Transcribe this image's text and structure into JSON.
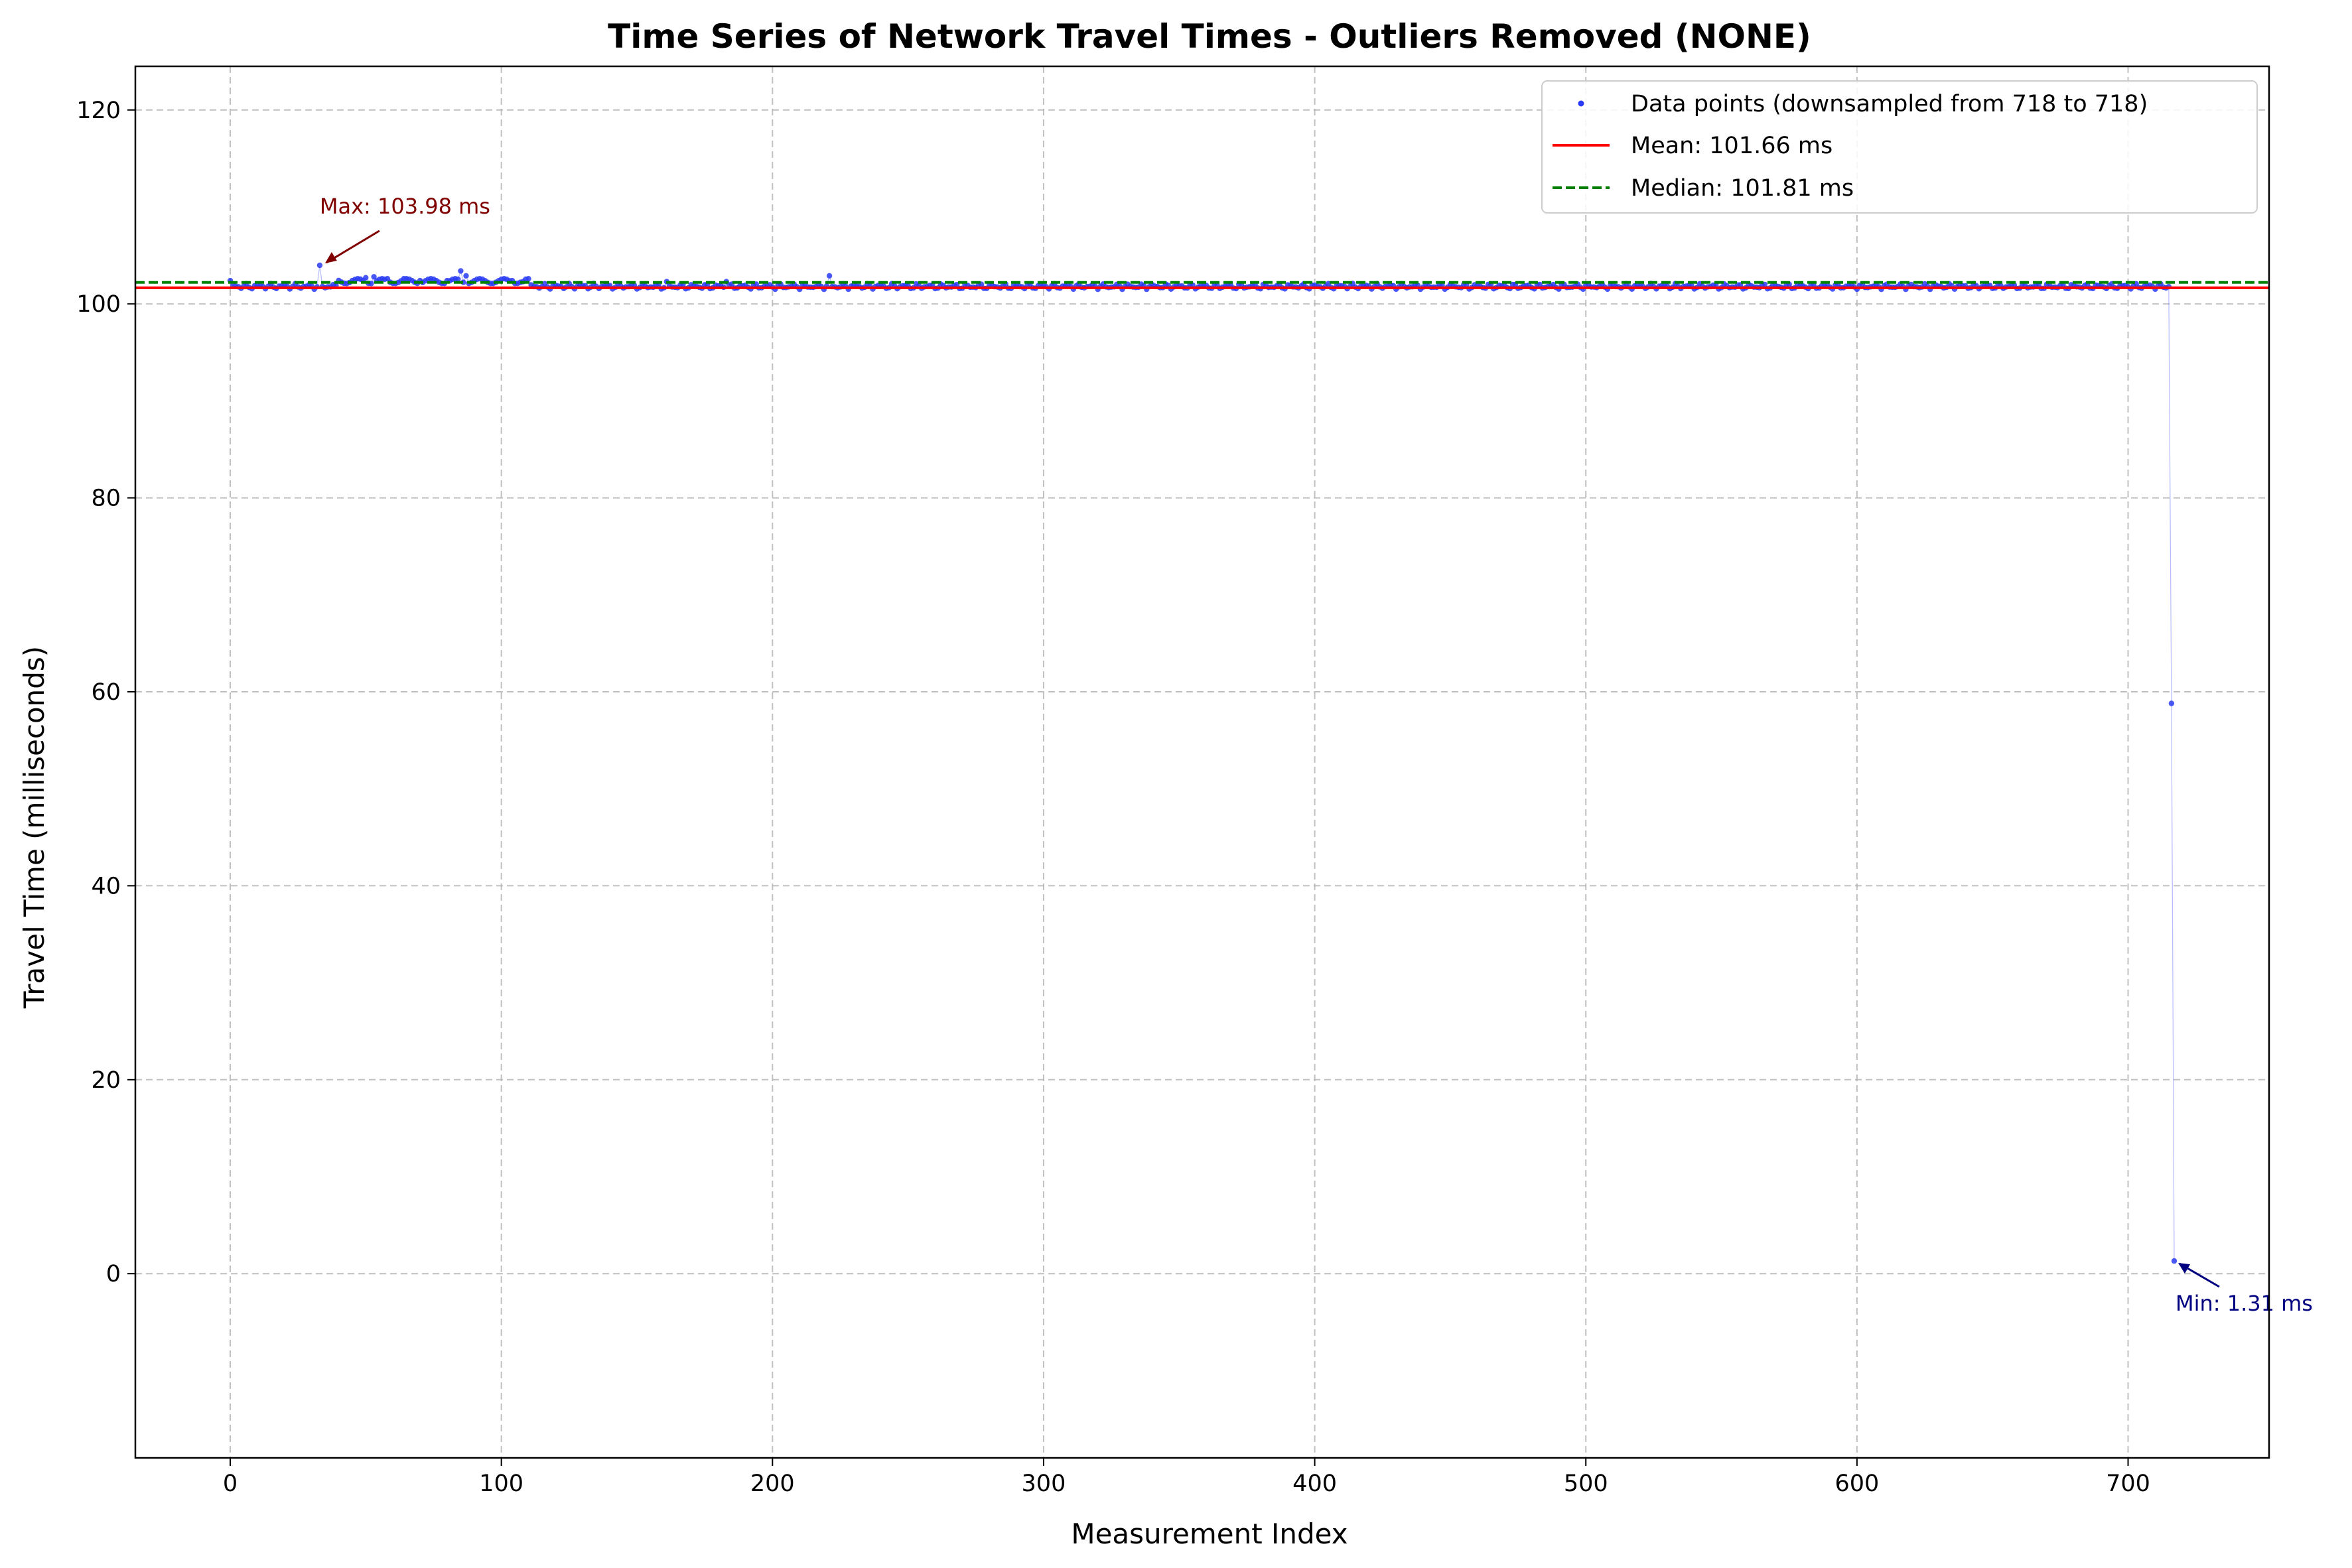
{
  "chart_data": {
    "type": "scatter",
    "title": "Time Series of Network Travel Times - Outliers Removed (NONE)",
    "xlabel": "Measurement Index",
    "ylabel": "Travel Time (milliseconds)",
    "xlim": [
      -35,
      752
    ],
    "ylim": [
      -19,
      124.5
    ],
    "xticks": [
      0,
      100,
      200,
      300,
      400,
      500,
      600,
      700
    ],
    "yticks": [
      0,
      20,
      40,
      60,
      80,
      100,
      120
    ],
    "grid": true,
    "legend_position": "top-right",
    "series": [
      {
        "name": "Data points (downsampled from 718 to 718)",
        "kind": "points",
        "color": "#2a3cf5",
        "count": 718,
        "baseline": 101.8,
        "notable_points": [
          {
            "x": 0,
            "y": 102.4
          },
          {
            "x": 33,
            "y": 103.98
          },
          {
            "x": 45,
            "y": 102.4
          },
          {
            "x": 50,
            "y": 102.7
          },
          {
            "x": 53,
            "y": 102.8
          },
          {
            "x": 58,
            "y": 102.6
          },
          {
            "x": 64,
            "y": 102.6
          },
          {
            "x": 70,
            "y": 102.4
          },
          {
            "x": 74,
            "y": 102.6
          },
          {
            "x": 80,
            "y": 102.4
          },
          {
            "x": 85,
            "y": 103.4
          },
          {
            "x": 87,
            "y": 102.9
          },
          {
            "x": 104,
            "y": 102.4
          },
          {
            "x": 108,
            "y": 102.3
          },
          {
            "x": 161,
            "y": 102.3
          },
          {
            "x": 183,
            "y": 102.3
          },
          {
            "x": 221,
            "y": 102.9
          },
          {
            "x": 716,
            "y": 58.8
          },
          {
            "x": 717,
            "y": 1.31
          }
        ]
      },
      {
        "name": "Mean: 101.66 ms",
        "kind": "hline",
        "value": 101.66,
        "color": "#ff0000",
        "dash": "solid"
      },
      {
        "name": "Median: 101.81 ms",
        "kind": "hline",
        "value": 101.81,
        "color": "#008000",
        "dash": "dashed"
      }
    ],
    "annotations": [
      {
        "text": "Max: 103.98 ms",
        "x": 33,
        "y": 103.98,
        "color": "#800000"
      },
      {
        "text": "Min: 1.31 ms",
        "x": 717,
        "y": 1.31,
        "color": "#000080"
      }
    ]
  }
}
